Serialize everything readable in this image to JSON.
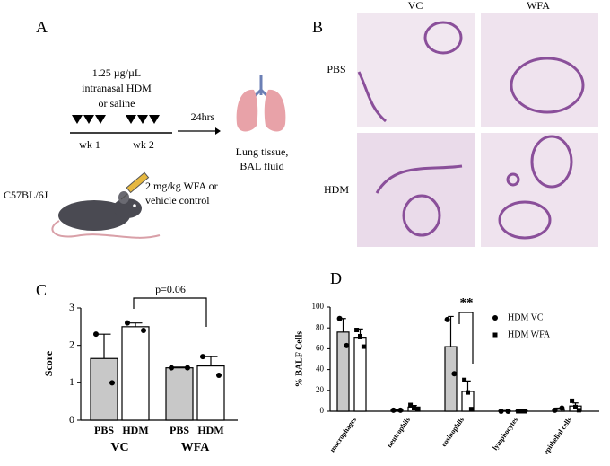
{
  "panel_a": {
    "letter": "A",
    "dose": [
      "1.25 µg/µL",
      "intranasal HDM",
      "or saline"
    ],
    "weeks": [
      "wk 1",
      "wk 2"
    ],
    "delay": "24hrs",
    "readout": [
      "Lung tissue,",
      "BAL fluid"
    ],
    "strain": "C57BL/6J",
    "treatment": [
      "2 mg/kg WFA or",
      "vehicle control"
    ]
  },
  "panel_b": {
    "letter": "B",
    "columns": [
      "VC",
      "WFA"
    ],
    "rows": [
      "PBS",
      "HDM"
    ]
  },
  "chart_data": [
    {
      "type": "bar",
      "letter": "C",
      "ylabel": "Score",
      "categories": [
        "PBS",
        "HDM",
        "PBS",
        "HDM"
      ],
      "group_labels": [
        "VC",
        "WFA"
      ],
      "values": [
        1.65,
        2.5,
        1.4,
        1.45
      ],
      "errors": [
        0.65,
        0.1,
        0.02,
        0.25
      ],
      "points": [
        [
          2.3,
          1.0
        ],
        [
          2.6,
          2.4
        ],
        [
          1.4,
          1.4
        ],
        [
          1.7,
          1.2
        ]
      ],
      "colors": [
        "#c8c8c8",
        "#ffffff",
        "#c8c8c8",
        "#ffffff"
      ],
      "ylim": [
        0,
        3
      ],
      "yticks": [
        0,
        1,
        2,
        3
      ],
      "annotation": "p=0.06"
    },
    {
      "type": "grouped_bar",
      "letter": "D",
      "ylabel": "% BALF Cells",
      "categories": [
        "macrophages",
        "neutrophils",
        "eosinophils",
        "lymphocytes",
        "epithelial cells"
      ],
      "series": [
        {
          "name": "HDM VC",
          "color": "#c8c8c8",
          "marker": "circle",
          "values": [
            76,
            1,
            62,
            0.5,
            2
          ],
          "errors": [
            13,
            0.3,
            29,
            0.2,
            1
          ],
          "points": [
            [
              89,
              63
            ],
            [
              1,
              1
            ],
            [
              88,
              36
            ],
            [
              0,
              0
            ],
            [
              1,
              3
            ]
          ]
        },
        {
          "name": "HDM WFA",
          "color": "#ffffff",
          "marker": "square",
          "values": [
            71,
            4,
            19,
            0.5,
            5
          ],
          "errors": [
            8,
            1.5,
            10,
            0.2,
            3
          ],
          "points": [
            [
              78,
              72,
              62
            ],
            [
              6,
              3,
              2
            ],
            [
              30,
              18,
              2
            ],
            [
              0,
              0,
              0
            ],
            [
              10,
              4,
              1
            ]
          ]
        }
      ],
      "ylim": [
        0,
        100
      ],
      "yticks": [
        0,
        20,
        40,
        60,
        80,
        100
      ],
      "annotation": "**"
    }
  ]
}
